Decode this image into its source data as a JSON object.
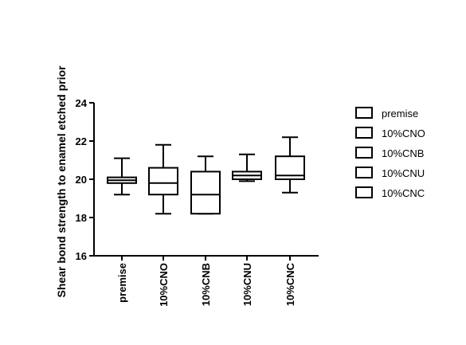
{
  "chart_data": {
    "type": "box",
    "title": "",
    "xlabel": "",
    "ylabel": "Shear bond strength to enamel etched prior",
    "ylim": [
      16,
      24
    ],
    "yticks": [
      16,
      18,
      20,
      22,
      24
    ],
    "grid": false,
    "legend_position": "right",
    "categories": [
      "premise",
      "10%CNO",
      "10%CNB",
      "10%CNU",
      "10%CNC"
    ],
    "boxes": [
      {
        "name": "premise",
        "min": 19.2,
        "q1": 19.8,
        "median": 19.95,
        "q3": 20.1,
        "max": 21.1
      },
      {
        "name": "10%CNO",
        "min": 18.2,
        "q1": 19.2,
        "median": 19.8,
        "q3": 20.6,
        "max": 21.8
      },
      {
        "name": "10%CNB",
        "min": 18.2,
        "q1": 18.2,
        "median": 19.2,
        "q3": 20.4,
        "max": 21.2
      },
      {
        "name": "10%CNU",
        "min": 19.9,
        "q1": 20.0,
        "median": 20.2,
        "q3": 20.4,
        "max": 21.3
      },
      {
        "name": "10%CNC",
        "min": 19.3,
        "q1": 20.0,
        "median": 20.2,
        "q3": 21.2,
        "max": 22.2
      }
    ],
    "legend": [
      "premise",
      "10%CNO",
      "10%CNB",
      "10%CNU",
      "10%CNC"
    ]
  }
}
